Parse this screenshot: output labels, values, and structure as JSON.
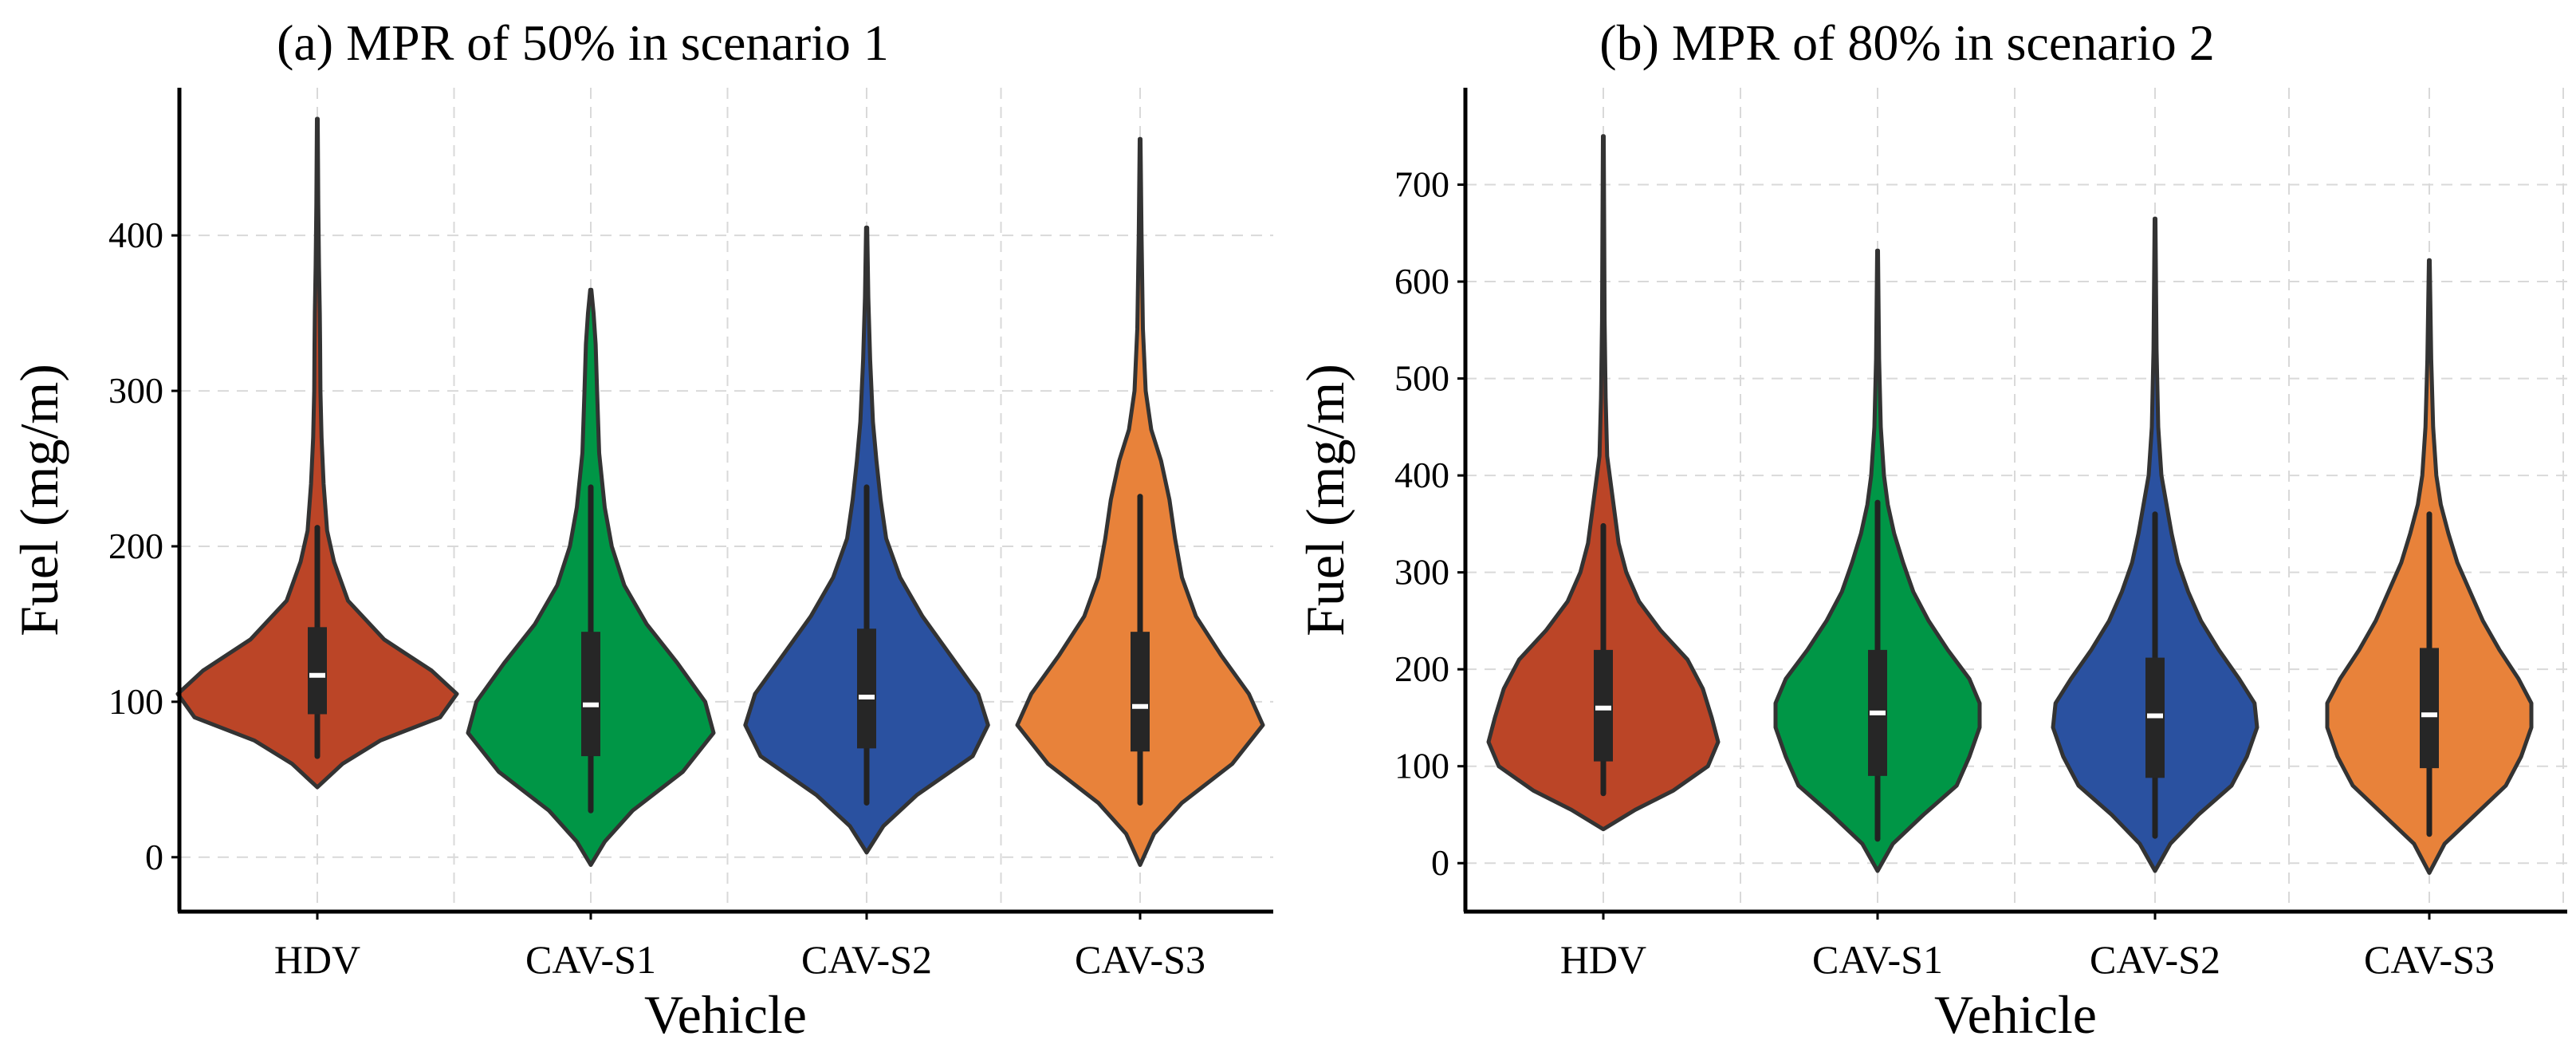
{
  "chart_data": [
    {
      "type": "violin",
      "title": "(a) MPR of 50% in scenario 1",
      "xlabel": "Vehicle",
      "ylabel": "Fuel (mg/m)",
      "ylim": [
        -35,
        495
      ],
      "yticks": [
        0,
        100,
        200,
        300,
        400
      ],
      "grid": true,
      "categories": [
        "HDV",
        "CAV-S1",
        "CAV-S2",
        "CAV-S3"
      ],
      "colors": [
        "#bb4527",
        "#009646",
        "#2a51a0",
        "#e8823a"
      ],
      "series": [
        {
          "name": "HDV",
          "min": 45,
          "max": 475,
          "q1": 92,
          "median": 117,
          "q3": 148,
          "whisker_low": 65,
          "whisker_high": 212,
          "profile": [
            [
              45,
              0
            ],
            [
              60,
              0.18
            ],
            [
              75,
              0.45
            ],
            [
              90,
              0.88
            ],
            [
              105,
              1.0
            ],
            [
              120,
              0.82
            ],
            [
              140,
              0.48
            ],
            [
              165,
              0.22
            ],
            [
              190,
              0.12
            ],
            [
              210,
              0.07
            ],
            [
              240,
              0.045
            ],
            [
              270,
              0.03
            ],
            [
              300,
              0.022
            ],
            [
              330,
              0.02
            ],
            [
              350,
              0.018
            ],
            [
              380,
              0.012
            ],
            [
              420,
              0.007
            ],
            [
              475,
              0.003
            ]
          ]
        },
        {
          "name": "CAV-S1",
          "min": -5,
          "max": 365,
          "q1": 65,
          "median": 98,
          "q3": 145,
          "whisker_low": 30,
          "whisker_high": 238,
          "profile": [
            [
              -5,
              0
            ],
            [
              10,
              0.1
            ],
            [
              30,
              0.3
            ],
            [
              55,
              0.66
            ],
            [
              80,
              0.88
            ],
            [
              100,
              0.82
            ],
            [
              125,
              0.62
            ],
            [
              150,
              0.4
            ],
            [
              175,
              0.24
            ],
            [
              200,
              0.15
            ],
            [
              225,
              0.1
            ],
            [
              260,
              0.06
            ],
            [
              300,
              0.045
            ],
            [
              330,
              0.035
            ],
            [
              350,
              0.02
            ],
            [
              365,
              0.004
            ]
          ]
        },
        {
          "name": "CAV-S2",
          "min": 3,
          "max": 405,
          "q1": 70,
          "median": 103,
          "q3": 147,
          "whisker_low": 35,
          "whisker_high": 238,
          "profile": [
            [
              3,
              0
            ],
            [
              20,
              0.12
            ],
            [
              40,
              0.36
            ],
            [
              65,
              0.76
            ],
            [
              85,
              0.87
            ],
            [
              105,
              0.8
            ],
            [
              130,
              0.6
            ],
            [
              155,
              0.4
            ],
            [
              180,
              0.24
            ],
            [
              205,
              0.14
            ],
            [
              230,
              0.1
            ],
            [
              255,
              0.07
            ],
            [
              280,
              0.045
            ],
            [
              320,
              0.025
            ],
            [
              360,
              0.012
            ],
            [
              405,
              0.004
            ]
          ]
        },
        {
          "name": "CAV-S3",
          "min": -5,
          "max": 462,
          "q1": 68,
          "median": 97,
          "q3": 145,
          "whisker_low": 35,
          "whisker_high": 232,
          "profile": [
            [
              -5,
              0
            ],
            [
              15,
              0.1
            ],
            [
              35,
              0.3
            ],
            [
              60,
              0.66
            ],
            [
              85,
              0.88
            ],
            [
              105,
              0.78
            ],
            [
              130,
              0.58
            ],
            [
              155,
              0.4
            ],
            [
              180,
              0.3
            ],
            [
              205,
              0.25
            ],
            [
              230,
              0.21
            ],
            [
              255,
              0.15
            ],
            [
              275,
              0.08
            ],
            [
              300,
              0.04
            ],
            [
              340,
              0.02
            ],
            [
              400,
              0.01
            ],
            [
              462,
              0.003
            ]
          ]
        }
      ]
    },
    {
      "type": "violin",
      "title": "(b) MPR of 80% in scenario 2",
      "xlabel": "Vehicle",
      "ylabel": "Fuel (mg/m)",
      "ylim": [
        -50,
        800
      ],
      "yticks": [
        0,
        100,
        200,
        300,
        400,
        500,
        600,
        700
      ],
      "grid": true,
      "categories": [
        "HDV",
        "CAV-S1",
        "CAV-S2",
        "CAV-S3"
      ],
      "colors": [
        "#bb4527",
        "#009646",
        "#2a51a0",
        "#e8823a"
      ],
      "series": [
        {
          "name": "HDV",
          "min": 35,
          "max": 750,
          "q1": 105,
          "median": 160,
          "q3": 220,
          "whisker_low": 72,
          "whisker_high": 348,
          "profile": [
            [
              35,
              0
            ],
            [
              55,
              0.25
            ],
            [
              75,
              0.55
            ],
            [
              100,
              0.82
            ],
            [
              125,
              0.9
            ],
            [
              150,
              0.85
            ],
            [
              180,
              0.78
            ],
            [
              210,
              0.66
            ],
            [
              240,
              0.45
            ],
            [
              270,
              0.28
            ],
            [
              300,
              0.18
            ],
            [
              330,
              0.12
            ],
            [
              360,
              0.09
            ],
            [
              390,
              0.06
            ],
            [
              420,
              0.03
            ],
            [
              480,
              0.018
            ],
            [
              560,
              0.01
            ],
            [
              650,
              0.007
            ],
            [
              750,
              0.003
            ]
          ]
        },
        {
          "name": "CAV-S1",
          "min": -8,
          "max": 632,
          "q1": 90,
          "median": 155,
          "q3": 220,
          "whisker_low": 25,
          "whisker_high": 372,
          "profile": [
            [
              -8,
              0
            ],
            [
              20,
              0.12
            ],
            [
              50,
              0.36
            ],
            [
              80,
              0.62
            ],
            [
              110,
              0.72
            ],
            [
              140,
              0.8
            ],
            [
              165,
              0.8
            ],
            [
              190,
              0.72
            ],
            [
              220,
              0.55
            ],
            [
              250,
              0.4
            ],
            [
              280,
              0.28
            ],
            [
              310,
              0.2
            ],
            [
              340,
              0.13
            ],
            [
              370,
              0.08
            ],
            [
              400,
              0.05
            ],
            [
              450,
              0.025
            ],
            [
              520,
              0.012
            ],
            [
              632,
              0.003
            ]
          ]
        },
        {
          "name": "CAV-S2",
          "min": -8,
          "max": 665,
          "q1": 88,
          "median": 152,
          "q3": 212,
          "whisker_low": 28,
          "whisker_high": 360,
          "profile": [
            [
              -8,
              0
            ],
            [
              20,
              0.12
            ],
            [
              50,
              0.34
            ],
            [
              80,
              0.6
            ],
            [
              110,
              0.72
            ],
            [
              140,
              0.8
            ],
            [
              165,
              0.78
            ],
            [
              190,
              0.66
            ],
            [
              220,
              0.5
            ],
            [
              250,
              0.36
            ],
            [
              280,
              0.26
            ],
            [
              310,
              0.18
            ],
            [
              340,
              0.13
            ],
            [
              370,
              0.09
            ],
            [
              400,
              0.05
            ],
            [
              450,
              0.025
            ],
            [
              530,
              0.012
            ],
            [
              665,
              0.003
            ]
          ]
        },
        {
          "name": "CAV-S3",
          "min": -10,
          "max": 622,
          "q1": 98,
          "median": 153,
          "q3": 222,
          "whisker_low": 30,
          "whisker_high": 360,
          "profile": [
            [
              -10,
              0
            ],
            [
              20,
              0.12
            ],
            [
              50,
              0.36
            ],
            [
              80,
              0.6
            ],
            [
              110,
              0.72
            ],
            [
              140,
              0.8
            ],
            [
              165,
              0.8
            ],
            [
              190,
              0.7
            ],
            [
              220,
              0.55
            ],
            [
              250,
              0.42
            ],
            [
              280,
              0.32
            ],
            [
              310,
              0.22
            ],
            [
              340,
              0.15
            ],
            [
              370,
              0.09
            ],
            [
              400,
              0.055
            ],
            [
              450,
              0.03
            ],
            [
              520,
              0.015
            ],
            [
              622,
              0.003
            ]
          ]
        }
      ]
    }
  ]
}
